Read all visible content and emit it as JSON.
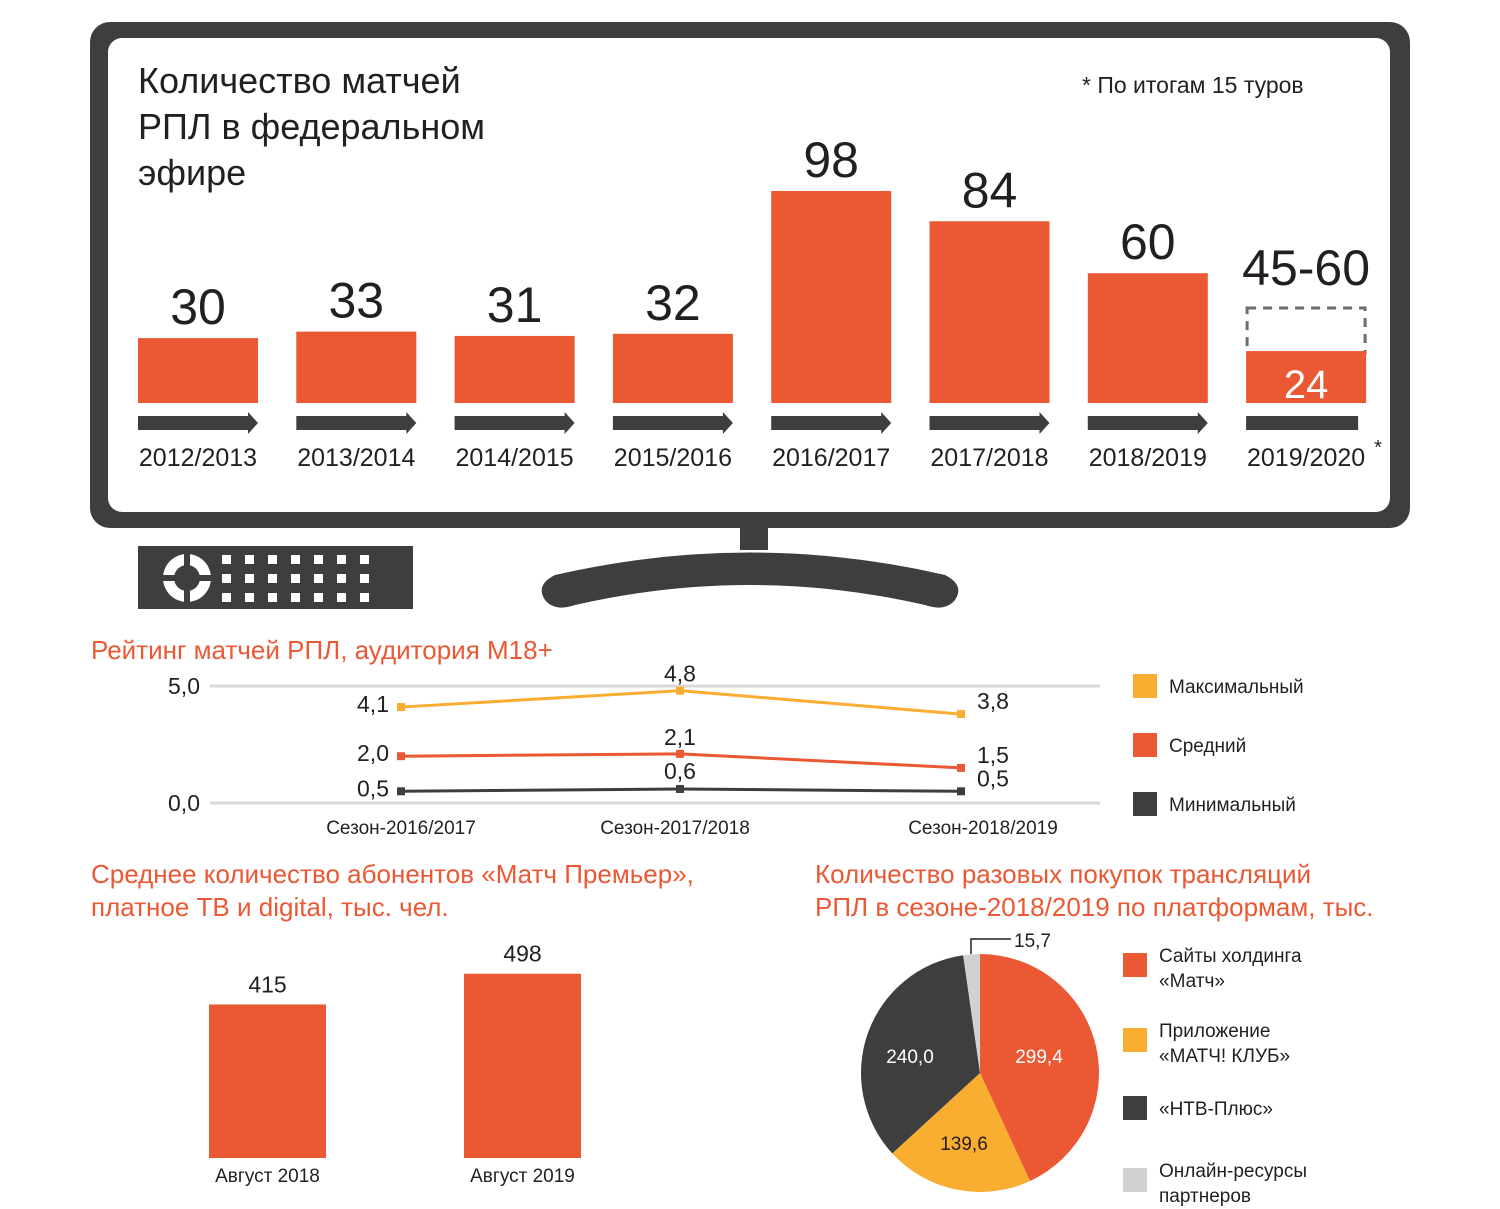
{
  "colors": {
    "orange": "#EB5834",
    "yellow": "#F9AE32",
    "dark": "#3E3E3E",
    "light": "#D1D1D1"
  },
  "chart_data": [
    {
      "type": "bar",
      "title": "Количество матчей РПЛ в федеральном эфире",
      "note": "* По итогам 15 туров",
      "categories": [
        "2012/2013",
        "2013/2014",
        "2014/2015",
        "2015/2016",
        "2016/2017",
        "2017/2018",
        "2018/2019",
        "2019/2020*"
      ],
      "values": [
        30,
        33,
        31,
        32,
        98,
        84,
        60,
        24
      ],
      "labels": [
        "30",
        "33",
        "31",
        "32",
        "98",
        "84",
        "60",
        "45-60"
      ],
      "projected_range": [
        45,
        60
      ],
      "current_value_label": "24"
    },
    {
      "type": "line",
      "title": "Рейтинг матчей РПЛ, аудитория М18+",
      "categories": [
        "Сезон-2016/2017",
        "Сезон-2017/2018",
        "Сезон-2018/2019"
      ],
      "ylim": [
        0,
        5
      ],
      "yticks": [
        "0,0",
        "5,0"
      ],
      "series": [
        {
          "name": "Максимальный",
          "values": [
            4.1,
            4.8,
            3.8
          ],
          "labels": [
            "4,1",
            "4,8",
            "3,8"
          ],
          "color": "#F9AE32"
        },
        {
          "name": "Средний",
          "values": [
            2.0,
            2.1,
            1.5
          ],
          "labels": [
            "2,0",
            "2,1",
            "1,5"
          ],
          "color": "#EB5834"
        },
        {
          "name": "Минимальный",
          "values": [
            0.5,
            0.6,
            0.5
          ],
          "labels": [
            "0,5",
            "0,6",
            "0,5"
          ],
          "color": "#3E3E3E"
        }
      ],
      "legend": "right"
    },
    {
      "type": "bar",
      "title": "Среднее количество абонентов «Матч Премьер», платное ТВ и digital, тыс. чел.",
      "categories": [
        "Август 2018",
        "Август 2019"
      ],
      "values": [
        415,
        498
      ],
      "labels": [
        "415",
        "498"
      ]
    },
    {
      "type": "pie",
      "title": "Количество разовых покупок трансляций РПЛ в сезоне-2018/2019 по платформам, тыс.",
      "slices": [
        {
          "name": "Сайты холдинга «Матч»",
          "value": 299.4,
          "label": "299,4",
          "color": "#EB5834"
        },
        {
          "name": "Приложение «МАТЧ! КЛУБ»",
          "value": 139.6,
          "label": "139,6",
          "color": "#F9AE32"
        },
        {
          "name": "«НТВ-Плюс»",
          "value": 240.0,
          "label": "240,0",
          "color": "#3E3E3E"
        },
        {
          "name": "Онлайн-ресурсы партнеров",
          "value": 15.7,
          "label": "15,7",
          "color": "#D1D1D1"
        }
      ],
      "legend": "right"
    }
  ],
  "tv": {
    "title_lines": [
      "Количество матчей",
      "РПЛ в федеральном",
      "эфире"
    ]
  },
  "subs": {
    "title_lines": [
      "Среднее количество абонентов «Матч Премьер»,",
      "платное ТВ и digital, тыс. чел."
    ]
  },
  "pie": {
    "title_lines": [
      "Количество разовых покупок трансляций",
      "РПЛ в сезоне-2018/2019 по платформам, тыс."
    ],
    "legend_lines": [
      [
        "Сайты холдинга",
        "«Матч»"
      ],
      [
        "Приложение",
        "«МАТЧ! КЛУБ»"
      ],
      [
        "«НТВ-Плюс»"
      ],
      [
        "Онлайн-ресурсы",
        "партнеров"
      ]
    ]
  }
}
